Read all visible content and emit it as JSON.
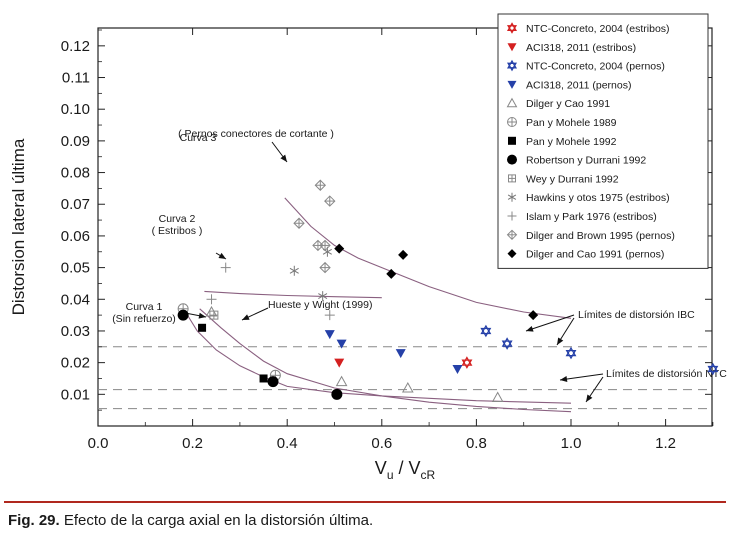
{
  "chart_data": {
    "type": "scatter",
    "xlabel": "V",
    "xlabel_sub1": "u",
    "xlabel_sep": "/ V",
    "xlabel_sub2": "cR",
    "ylabel": "Distorsion lateral última",
    "xlim": [
      0.0,
      1.3
    ],
    "ylim": [
      0.0,
      0.12
    ],
    "xticks": [
      0.0,
      0.2,
      0.4,
      0.6,
      0.8,
      1.0,
      1.2
    ],
    "xtick_labels": [
      "0.0",
      "0.2",
      "0.4",
      "0.6",
      "0.8",
      "1.0",
      "1.2"
    ],
    "yticks": [
      0.01,
      0.02,
      0.03,
      0.04,
      0.05,
      0.06,
      0.07,
      0.08,
      0.09,
      0.1,
      0.11,
      0.12
    ],
    "ytick_labels": [
      "0.01",
      "0.02",
      "0.03",
      "0.04",
      "0.05",
      "0.06",
      "0.07",
      "0.08",
      "0.09",
      "0.10",
      "0.11",
      "0.12"
    ],
    "series": [
      {
        "name": "NTC-Concreto, 2004 (estribos)",
        "marker": "star6-open",
        "color": "#d42020",
        "points": [
          [
            0.78,
            0.02
          ]
        ]
      },
      {
        "name": "ACI318, 2011 (estribos)",
        "marker": "tri-down",
        "color": "#d42020",
        "points": [
          [
            0.51,
            0.02
          ]
        ]
      },
      {
        "name": "NTC-Concreto, 2004 (pernos)",
        "marker": "star6-open",
        "color": "#2540a8",
        "points": [
          [
            0.82,
            0.03
          ],
          [
            0.865,
            0.026
          ],
          [
            1.0,
            0.023
          ],
          [
            1.3,
            0.018
          ]
        ]
      },
      {
        "name": "ACI318, 2011 (pernos)",
        "marker": "tri-down",
        "color": "#2540a8",
        "points": [
          [
            0.49,
            0.029
          ],
          [
            0.515,
            0.026
          ],
          [
            0.64,
            0.023
          ],
          [
            0.76,
            0.018
          ]
        ]
      },
      {
        "name": "Dilger y Cao 1991",
        "marker": "tri-open",
        "color": "#888888",
        "points": [
          [
            0.24,
            0.036
          ],
          [
            0.515,
            0.014
          ],
          [
            0.655,
            0.012
          ],
          [
            0.845,
            0.009
          ]
        ]
      },
      {
        "name": "Pan y Mohele 1989",
        "marker": "circle-plus",
        "color": "#888888",
        "points": [
          [
            0.18,
            0.037
          ],
          [
            0.375,
            0.016
          ]
        ]
      },
      {
        "name": "Pan y Mohele 1992",
        "marker": "square",
        "color": "#000000",
        "points": [
          [
            0.22,
            0.031
          ],
          [
            0.35,
            0.015
          ]
        ]
      },
      {
        "name": "Robertson y Durrani 1992",
        "marker": "circle",
        "color": "#000000",
        "points": [
          [
            0.18,
            0.035
          ],
          [
            0.37,
            0.014
          ],
          [
            0.505,
            0.01
          ]
        ]
      },
      {
        "name": "Wey y Durrani 1992",
        "marker": "square-plus",
        "color": "#888888",
        "points": [
          [
            0.245,
            0.035
          ]
        ]
      },
      {
        "name": "Hawkins y otos 1975 (estribos)",
        "marker": "asterisk",
        "color": "#777777",
        "points": [
          [
            0.415,
            0.049
          ],
          [
            0.475,
            0.041
          ],
          [
            0.485,
            0.055
          ]
        ]
      },
      {
        "name": "Islam y Park 1976 (estribos)",
        "marker": "plus",
        "color": "#888888",
        "points": [
          [
            0.27,
            0.05
          ],
          [
            0.24,
            0.04
          ],
          [
            0.49,
            0.035
          ]
        ]
      },
      {
        "name": "Dilger and Brown 1995 (pernos)",
        "marker": "diamond-plus",
        "color": "#888888",
        "points": [
          [
            0.425,
            0.064
          ],
          [
            0.47,
            0.076
          ],
          [
            0.49,
            0.071
          ],
          [
            0.465,
            0.057
          ],
          [
            0.48,
            0.057
          ],
          [
            0.48,
            0.05
          ]
        ]
      },
      {
        "name": "Dilger and Cao 1991 (pernos)",
        "marker": "diamond",
        "color": "#000000",
        "points": [
          [
            0.51,
            0.056
          ],
          [
            0.645,
            0.054
          ],
          [
            0.62,
            0.048
          ],
          [
            0.92,
            0.035
          ]
        ]
      }
    ],
    "curves": [
      {
        "name": "Curva 3",
        "points": [
          [
            0.395,
            0.072
          ],
          [
            0.45,
            0.063
          ],
          [
            0.5,
            0.057
          ],
          [
            0.55,
            0.053
          ],
          [
            0.6,
            0.05
          ],
          [
            0.65,
            0.047
          ],
          [
            0.7,
            0.044
          ],
          [
            0.8,
            0.039
          ],
          [
            0.9,
            0.036
          ],
          [
            1.0,
            0.034
          ]
        ]
      },
      {
        "name": "Curva 2",
        "points": [
          [
            0.225,
            0.0425
          ],
          [
            0.3,
            0.0418
          ],
          [
            0.4,
            0.0412
          ],
          [
            0.5,
            0.0408
          ],
          [
            0.6,
            0.0405
          ]
        ]
      },
      {
        "name": "Curva 1",
        "points": [
          [
            0.185,
            0.036
          ],
          [
            0.21,
            0.03
          ],
          [
            0.25,
            0.024
          ],
          [
            0.3,
            0.019
          ],
          [
            0.35,
            0.0155
          ],
          [
            0.4,
            0.0125
          ],
          [
            0.5,
            0.0105
          ],
          [
            0.6,
            0.0095
          ],
          [
            0.8,
            0.008
          ],
          [
            1.0,
            0.0072
          ]
        ]
      },
      {
        "name": "Hueste y Wight (1999)",
        "points": [
          [
            0.215,
            0.037
          ],
          [
            0.26,
            0.031
          ],
          [
            0.3,
            0.026
          ],
          [
            0.35,
            0.0205
          ],
          [
            0.4,
            0.0165
          ],
          [
            0.5,
            0.012
          ],
          [
            0.6,
            0.0095
          ],
          [
            0.7,
            0.0075
          ],
          [
            0.8,
            0.0062
          ],
          [
            0.9,
            0.0052
          ],
          [
            1.0,
            0.0045
          ]
        ]
      }
    ],
    "reference_lines": [
      {
        "label": "IBC",
        "y": 0.025
      },
      {
        "label": "NTC",
        "y": 0.0115
      },
      {
        "label": "NTC",
        "y": 0.0055
      }
    ],
    "annotations": [
      {
        "id": "curva3",
        "lines": [
          "Curva 3",
          "( Pernos conectores de cortante )"
        ]
      },
      {
        "id": "curva2",
        "lines": [
          "Curva 2",
          "( Estribos )"
        ]
      },
      {
        "id": "curva1",
        "lines": [
          "Curva 1",
          "(Sin refuerzo)"
        ]
      },
      {
        "id": "hueste",
        "lines": [
          "Hueste y Wight (1999)"
        ]
      },
      {
        "id": "ibc",
        "lines": [
          "Límites de distorsión IBC"
        ]
      },
      {
        "id": "ntc",
        "lines": [
          "Límites de distorsión NTC"
        ]
      }
    ]
  },
  "caption": {
    "fig_label": "Fig. 29.",
    "text": "Efecto de la carga axial en la distorsión última."
  }
}
